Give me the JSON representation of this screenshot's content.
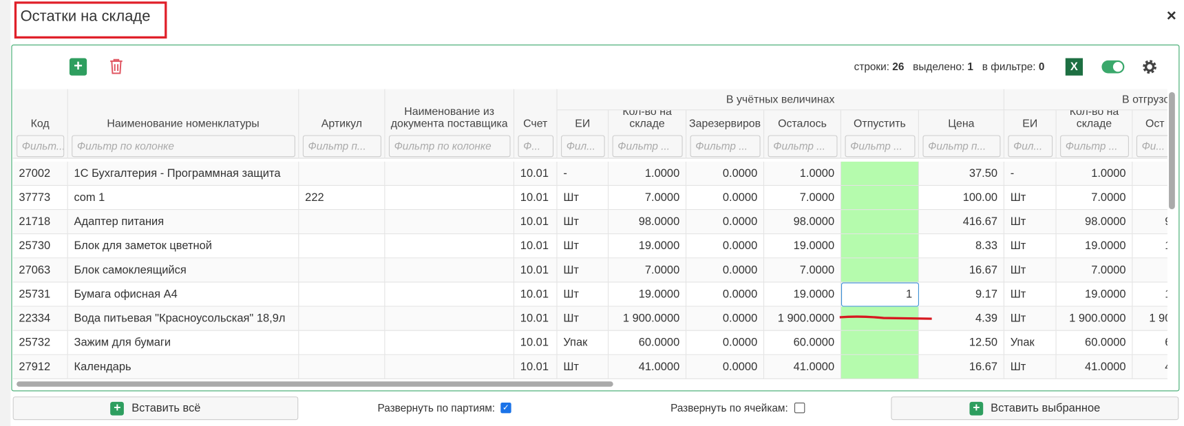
{
  "title": "Остатки на складе",
  "toolbar": {
    "rows_label": "строки:",
    "rows": "26",
    "selected_label": "выделено:",
    "selected": "1",
    "filter_label": "в фильтре:",
    "filter": "0"
  },
  "table": {
    "groups": [
      "В учётных величинах",
      "В отгрузо"
    ],
    "columns": [
      "Код",
      "Наименование номенклатуры",
      "Артикул",
      "Наименование из документа поставщика",
      "Счет",
      "ЕИ",
      "Кол-во на складе",
      "Зарезервиров",
      "Осталось",
      "Отпустить",
      "Цена",
      "ЕИ",
      "Кол-во на складе",
      "Ост"
    ],
    "filters": [
      "Фильт...",
      "Фильтр по колонке",
      "Фильтр п...",
      "Фильтр по колонке",
      "Ф...",
      "Фил...",
      "Фильтр ...",
      "Фильтр ...",
      "Фильтр ...",
      "Фильтр ...",
      "Фильтр п...",
      "Фил...",
      "Фильтр ...",
      "Фи..."
    ],
    "rows": [
      [
        "27002",
        "1С Бухгалтерия - Программная защита",
        null,
        null,
        "10.01",
        "-",
        "1.0000",
        "0.0000",
        "1.0000",
        null,
        "37.50",
        "-",
        "1.0000",
        null
      ],
      [
        "37773",
        "com 1",
        "222",
        null,
        "10.01",
        "Шт",
        "7.0000",
        "0.0000",
        "7.0000",
        null,
        "100.00",
        "Шт",
        "7.0000",
        null
      ],
      [
        "21718",
        "Адаптер питания",
        null,
        null,
        "10.01",
        "Шт",
        "98.0000",
        "0.0000",
        "98.0000",
        null,
        "416.67",
        "Шт",
        "98.0000",
        "9"
      ],
      [
        "25730",
        "Блок для заметок цветной",
        null,
        null,
        "10.01",
        "Шт",
        "19.0000",
        "0.0000",
        "19.0000",
        null,
        "8.33",
        "Шт",
        "19.0000",
        "1"
      ],
      [
        "27063",
        "Блок самоклеящийся",
        null,
        null,
        "10.01",
        "Шт",
        "7.0000",
        "0.0000",
        "7.0000",
        null,
        "16.67",
        "Шт",
        "7.0000",
        null
      ],
      [
        "25731",
        "Бумага офисная А4",
        null,
        null,
        "10.01",
        "Шт",
        "19.0000",
        "0.0000",
        "19.0000",
        "1",
        "9.17",
        "Шт",
        "19.0000",
        "1"
      ],
      [
        "22334",
        "Вода питьевая \"Красноусольская\" 18,9л",
        null,
        null,
        "10.01",
        "Шт",
        "1 900.0000",
        "0.0000",
        "1 900.0000",
        null,
        "4.39",
        "Шт",
        "1 900.0000",
        "1 90"
      ],
      [
        "25732",
        "Зажим для бумаги",
        null,
        null,
        "10.01",
        "Упак",
        "60.0000",
        "0.0000",
        "60.0000",
        null,
        "12.50",
        "Упак",
        "60.0000",
        "6"
      ],
      [
        "27912",
        "Календарь",
        null,
        null,
        "10.01",
        "Шт",
        "41.0000",
        "0.0000",
        "41.0000",
        null,
        "16.67",
        "Шт",
        "41.0000",
        "4"
      ]
    ]
  },
  "footer": {
    "insert_all": "Вставить всё",
    "expand_batches": "Развернуть по партиям:",
    "expand_cells": "Развернуть по ячейкам:",
    "insert_selected": "Вставить выбранное"
  }
}
